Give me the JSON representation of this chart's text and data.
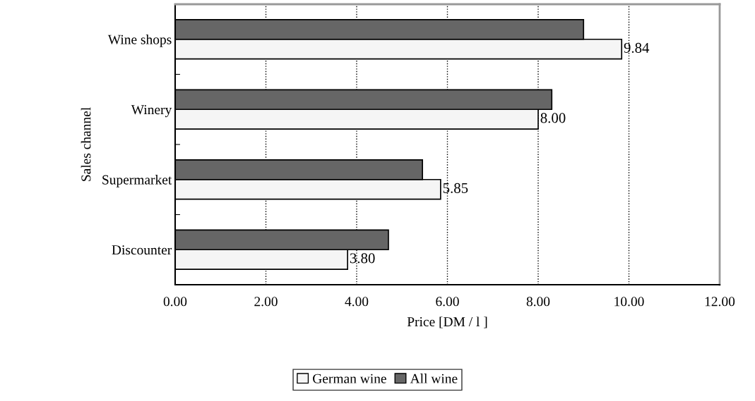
{
  "chart_data": {
    "type": "bar",
    "orientation": "horizontal",
    "xlabel": "Price [DM / l ]",
    "ylabel": "Sales channel",
    "categories": [
      "Wine shops",
      "Winery",
      "Supermarket",
      "Discounter"
    ],
    "series": [
      {
        "name": "German wine",
        "color": "#f5f5f5",
        "values": [
          9.84,
          8.0,
          5.85,
          3.8
        ],
        "value_labels": [
          "9.84",
          "8.00",
          "5.85",
          "3.80"
        ]
      },
      {
        "name": "All wine",
        "color": "#666666",
        "values": [
          9.0,
          8.3,
          5.45,
          4.7
        ]
      }
    ],
    "xlim": [
      0,
      12
    ],
    "xticks": [
      {
        "value": 0,
        "label": "0.00"
      },
      {
        "value": 2,
        "label": "2.00"
      },
      {
        "value": 4,
        "label": "4.00"
      },
      {
        "value": 6,
        "label": "6.00"
      },
      {
        "value": 8,
        "label": "8.00"
      },
      {
        "value": 10,
        "label": "10.00"
      },
      {
        "value": 12,
        "label": "12.00"
      }
    ],
    "grid": "x",
    "legend": "bottom"
  }
}
